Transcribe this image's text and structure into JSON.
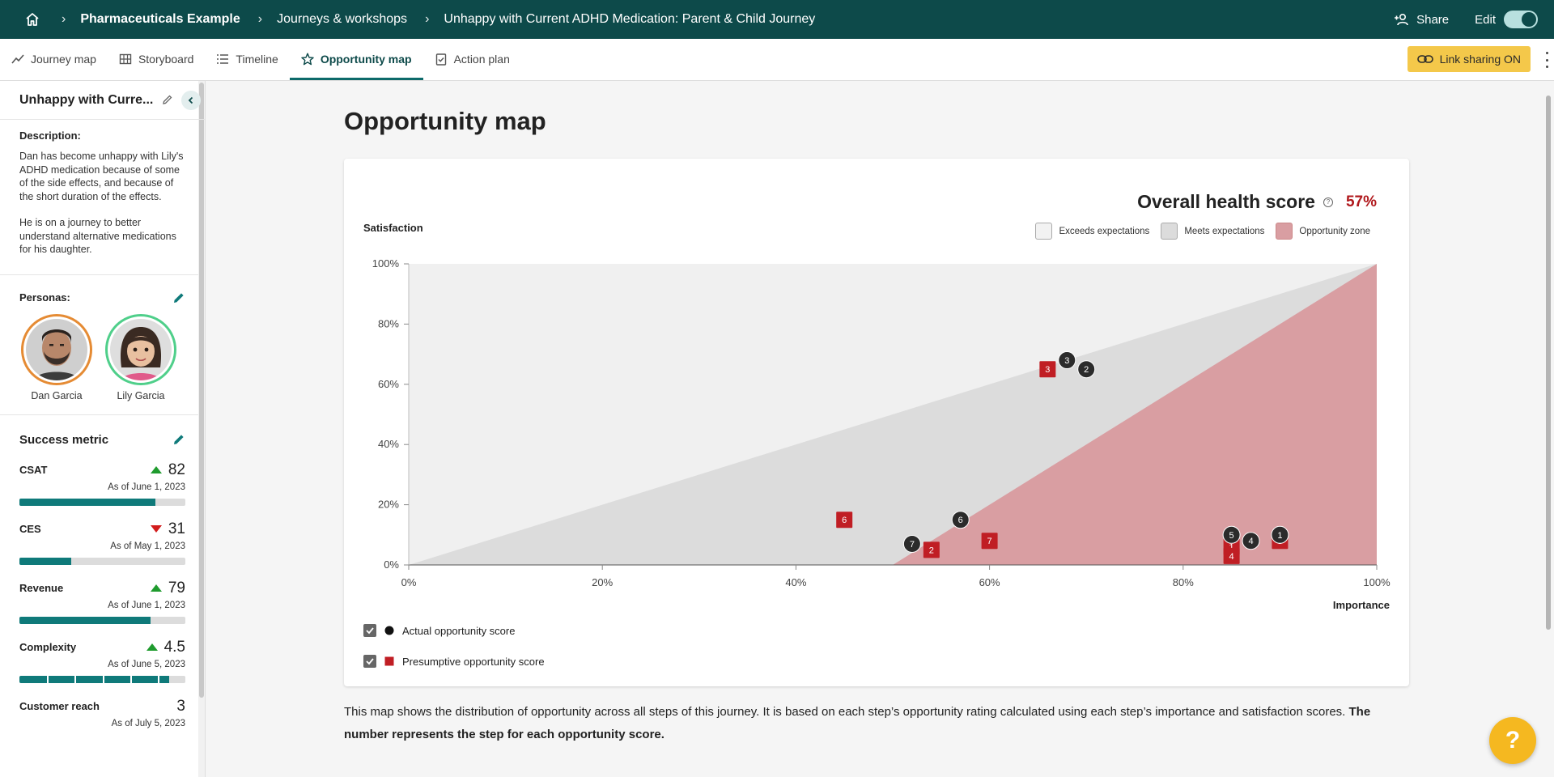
{
  "breadcrumb": {
    "workspace": "Pharmaceuticals Example",
    "section": "Journeys & workshops",
    "journey": "Unhappy with Current ADHD Medication: Parent & Child Journey"
  },
  "header": {
    "share_label": "Share",
    "edit_label": "Edit",
    "edit_on": true
  },
  "tabs": [
    {
      "label": "Journey map",
      "icon": "trend-icon"
    },
    {
      "label": "Storyboard",
      "icon": "grid-icon"
    },
    {
      "label": "Timeline",
      "icon": "list-icon"
    },
    {
      "label": "Opportunity map",
      "icon": "star-icon",
      "active": true
    },
    {
      "label": "Action plan",
      "icon": "clipboard-check-icon"
    }
  ],
  "link_sharing_label": "Link sharing ON",
  "sidebar": {
    "title": "Unhappy with Curre...",
    "description_label": "Description:",
    "description_p1": "Dan has become unhappy with Lily's ADHD medication because of some of the side effects, and because of the short duration of the effects.",
    "description_p2": "He is on a journey to better understand alternative medications for his daughter.",
    "personas_label": "Personas:",
    "personas": [
      {
        "name": "Dan Garcia"
      },
      {
        "name": "Lily Garcia"
      }
    ],
    "success_metric_label": "Success metric",
    "metrics": [
      {
        "name": "CSAT",
        "value": "82",
        "trend": "up",
        "date": "As of June 1, 2023",
        "fill": 0.82
      },
      {
        "name": "CES",
        "value": "31",
        "trend": "down",
        "date": "As of May 1, 2023",
        "fill": 0.31
      },
      {
        "name": "Revenue",
        "value": "79",
        "trend": "up",
        "date": "As of June 1, 2023",
        "fill": 0.79
      },
      {
        "name": "Complexity",
        "value": "4.5",
        "trend": "up",
        "date": "As of June 5, 2023",
        "fill": 0.9,
        "segments": 5
      },
      {
        "name": "Customer reach",
        "value": "3",
        "date": "As of July 5, 2023"
      }
    ]
  },
  "main": {
    "title": "Opportunity map",
    "health_score_label": "Overall health score",
    "health_score_value": "57%",
    "footnote_text": "This map shows the distribution of opportunity across all steps of this journey. It is based on each step’s opportunity rating calculated using each step’s importance and satisfaction scores. ",
    "footnote_bold": "The number represents the step for each opportunity score."
  },
  "colors": {
    "brand": "#0d4a4a",
    "accent": "#0f7a7a",
    "opportunity_zone": "#d99ea2",
    "presumptive": "#c01e24",
    "actual": "#2b2b2b",
    "score": "#b0181c"
  },
  "chart_data": {
    "type": "scatter",
    "xlabel": "Importance",
    "ylabel": "Satisfaction",
    "xlim": [
      0,
      100
    ],
    "ylim": [
      0,
      100
    ],
    "x_ticks": [
      "0%",
      "20%",
      "40%",
      "60%",
      "80%",
      "100%"
    ],
    "y_ticks": [
      "0%",
      "20%",
      "40%",
      "60%",
      "80%",
      "100%"
    ],
    "zone_legend": [
      "Exceeds expectations",
      "Meets expectations",
      "Opportunity zone"
    ],
    "series": [
      {
        "name": "Actual opportunity score",
        "marker": "circle",
        "points": [
          {
            "label": "3",
            "x": 68,
            "y": 68
          },
          {
            "label": "2",
            "x": 70,
            "y": 65
          },
          {
            "label": "6",
            "x": 57,
            "y": 15
          },
          {
            "label": "7",
            "x": 52,
            "y": 7
          },
          {
            "label": "5",
            "x": 85,
            "y": 10
          },
          {
            "label": "4",
            "x": 87,
            "y": 8
          },
          {
            "label": "1",
            "x": 90,
            "y": 10
          }
        ]
      },
      {
        "name": "Presumptive opportunity score",
        "marker": "square",
        "points": [
          {
            "label": "3",
            "x": 66,
            "y": 65
          },
          {
            "label": "6",
            "x": 45,
            "y": 15
          },
          {
            "label": "2",
            "x": 54,
            "y": 5
          },
          {
            "label": "7",
            "x": 60,
            "y": 8
          },
          {
            "label": "1",
            "x": 85,
            "y": 6
          },
          {
            "label": "4",
            "x": 85,
            "y": 3
          },
          {
            "label": "5",
            "x": 90,
            "y": 8
          }
        ]
      }
    ]
  }
}
